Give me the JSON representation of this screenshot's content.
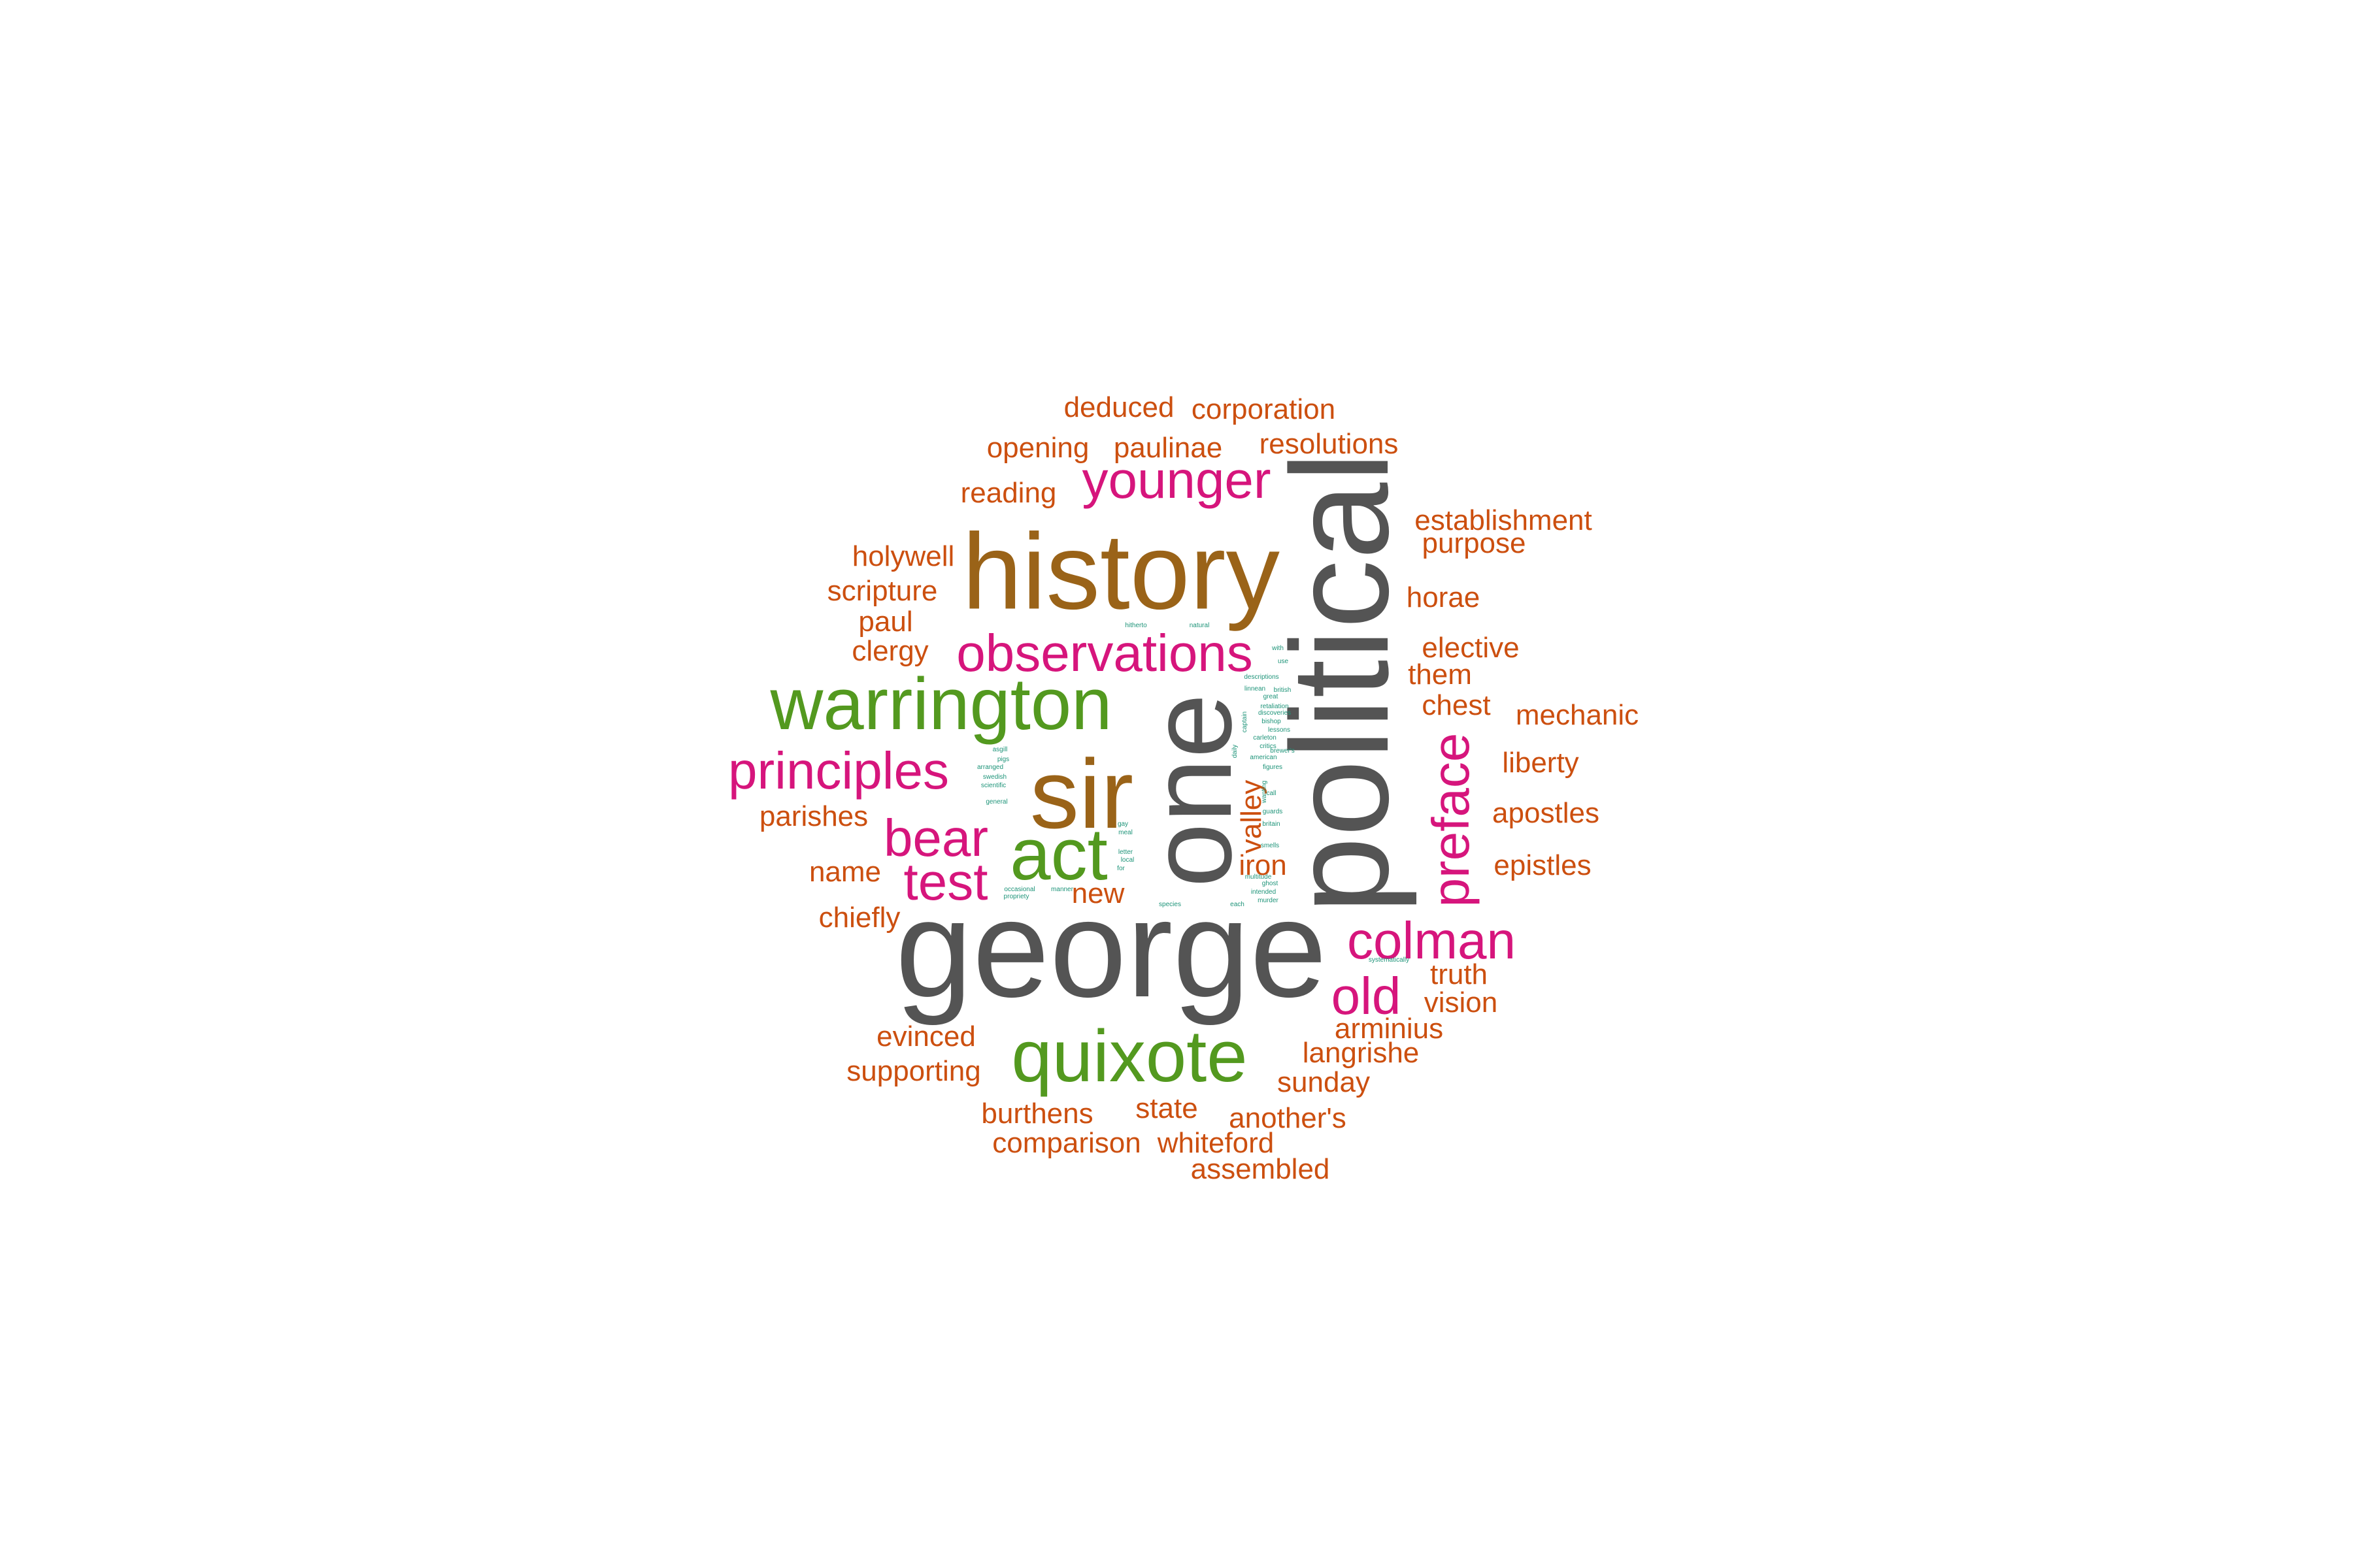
{
  "colors": {
    "gray": "#545454",
    "brown": "#9a6318",
    "green": "#53991f",
    "magenta": "#d6157c",
    "orange": "#cc4f0f",
    "teal": "#1e9479"
  },
  "words": {
    "george": "george",
    "political": "political",
    "one": "one",
    "history": "history",
    "sir": "sir",
    "warrington": "warrington",
    "quixote": "quixote",
    "act": "act",
    "observations": "observations",
    "principles": "principles",
    "younger": "younger",
    "colman": "colman",
    "preface": "preface",
    "bear": "bear",
    "test": "test",
    "old": "old",
    "deduced": "deduced",
    "corporation": "corporation",
    "opening": "opening",
    "paulinae": "paulinae",
    "resolutions": "resolutions",
    "reading": "reading",
    "establishment": "establishment",
    "purpose": "purpose",
    "holywell": "holywell",
    "scripture": "scripture",
    "horae": "horae",
    "paul": "paul",
    "clergy": "clergy",
    "elective": "elective",
    "them": "them",
    "chest": "chest",
    "mechanic": "mechanic",
    "liberty": "liberty",
    "apostles": "apostles",
    "parishes": "parishes",
    "epistles": "epistles",
    "name": "name",
    "valley": "valley",
    "iron": "iron",
    "new": "new",
    "chiefly": "chiefly",
    "truth": "truth",
    "vision": "vision",
    "arminius": "arminius",
    "evinced": "evinced",
    "langrishe": "langrishe",
    "supporting": "supporting",
    "sunday": "sunday",
    "state": "state",
    "burthens": "burthens",
    "anothers": "another's",
    "comparison": "comparison",
    "whiteford": "whiteford",
    "assembled": "assembled",
    "hitherto": "hitherto",
    "natural": "natural",
    "with": "with",
    "use": "use",
    "descriptions": "descriptions",
    "linnean": "linnean",
    "british": "british",
    "great": "great",
    "captain": "captain",
    "retaliation": "retaliation",
    "discoveries": "discoveries",
    "bishop": "bishop",
    "lessons": "lessons",
    "carleton": "carleton",
    "critics": "critics",
    "daily": "daily",
    "brewers": "brewer's",
    "american": "american",
    "asgill": "asgill",
    "pigs": "pigs",
    "arranged": "arranged",
    "swedish": "swedish",
    "scientific": "scientific",
    "figures": "figures",
    "call": "call",
    "general": "general",
    "guards": "guards",
    "britain": "britain",
    "gay": "gay",
    "meal": "meal",
    "smells": "smells",
    "letter": "letter",
    "local": "local",
    "for": "for",
    "multitude": "multitude",
    "ghost": "ghost",
    "intended": "intended",
    "murder": "murder",
    "occasional": "occasional",
    "propriety": "propriety",
    "manner": "manner",
    "species": "species",
    "each": "each",
    "systematically": "systematically",
    "wanting": "wanting"
  }
}
